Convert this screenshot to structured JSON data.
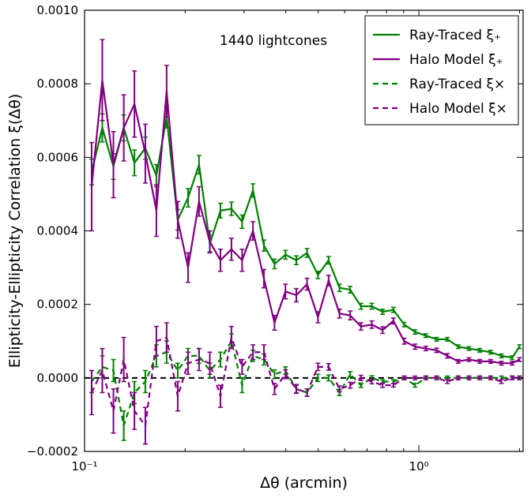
{
  "chart_data": {
    "type": "line",
    "title": "",
    "annotation": "1440 lightcones",
    "xlabel": "Δθ (arcmin)",
    "ylabel": "Ellipticity-Ellipticity Correlation ξ(Δθ)",
    "x_scale": "log",
    "xlim": [
      0.1,
      2.05
    ],
    "ylim": [
      -0.0002,
      0.001
    ],
    "x_ticks": [
      0.1,
      1
    ],
    "x_tick_labels": [
      "10⁻¹",
      "10⁰"
    ],
    "y_ticks": [
      -0.0002,
      0,
      0.0002,
      0.0004,
      0.0006,
      0.0008,
      0.001
    ],
    "y_tick_labels": [
      "−0.0002",
      "0.0000",
      "0.0002",
      "0.0004",
      "0.0006",
      "0.0008",
      "0.0010"
    ],
    "reference_line": {
      "y": 0,
      "style": "dashed",
      "color": "#000000"
    },
    "legend_position": "top-right",
    "grid": false,
    "x": [
      0.105,
      0.113,
      0.122,
      0.131,
      0.141,
      0.152,
      0.164,
      0.176,
      0.19,
      0.204,
      0.22,
      0.237,
      0.255,
      0.275,
      0.296,
      0.319,
      0.344,
      0.37,
      0.399,
      0.43,
      0.463,
      0.499,
      0.537,
      0.579,
      0.623,
      0.671,
      0.723,
      0.779,
      0.839,
      0.904,
      0.974,
      1.049,
      1.13,
      1.217,
      1.311,
      1.412,
      1.521,
      1.639,
      1.765,
      1.901,
      2.0
    ],
    "series": [
      {
        "name": "Ray-Traced ξ₊",
        "color": "#008000",
        "dash": "solid",
        "values": [
          0.00056,
          0.00068,
          0.000575,
          0.00068,
          0.000585,
          0.000625,
          0.00055,
          0.00071,
          0.00043,
          0.00049,
          0.00058,
          0.000365,
          0.000455,
          0.00046,
          0.000425,
          0.00051,
          0.00036,
          0.00031,
          0.000335,
          0.00032,
          0.00034,
          0.00028,
          0.00032,
          0.000245,
          0.00024,
          0.000195,
          0.000195,
          0.00018,
          0.000185,
          0.000145,
          0.000125,
          0.000115,
          0.000105,
          0.000105,
          8.5e-05,
          8e-05,
          7.5e-05,
          7e-05,
          6e-05,
          5.5e-05,
          8.5e-05
        ],
        "errors": [
          3.5e-05,
          3.8e-05,
          3.5e-05,
          3.5e-05,
          3.5e-05,
          3e-05,
          3e-05,
          3e-05,
          2.8e-05,
          2.5e-05,
          2.5e-05,
          2.2e-05,
          2e-05,
          1.8e-05,
          1.8e-05,
          1.8e-05,
          1.5e-05,
          1.3e-05,
          1.2e-05,
          1.2e-05,
          1.2e-05,
          1e-05,
          1e-05,
          1e-05,
          9e-06,
          8e-06,
          8e-06,
          7e-06,
          7e-06,
          6e-06,
          6e-06,
          5e-06,
          5e-06,
          5e-06,
          5e-06,
          5e-06,
          5e-06,
          5e-06,
          5e-06,
          5e-06,
          5e-06
        ]
      },
      {
        "name": "Halo Model ξ₊",
        "color": "#800080",
        "dash": "solid",
        "values": [
          0.00052,
          0.00081,
          0.00058,
          0.00068,
          0.000745,
          0.00061,
          0.000455,
          0.00078,
          0.00043,
          0.0003,
          0.00048,
          0.00037,
          0.00032,
          0.00035,
          0.00032,
          0.0004,
          0.00027,
          0.00015,
          0.000235,
          0.000225,
          0.000255,
          0.000165,
          0.000265,
          0.000175,
          0.00017,
          0.00014,
          0.000145,
          0.00013,
          0.000155,
          0.0001,
          8.5e-05,
          8e-05,
          7.5e-05,
          6e-05,
          4.5e-05,
          5e-05,
          4.5e-05,
          4.5e-05,
          4e-05,
          4e-05,
          5e-05
        ],
        "errors": [
          0.00012,
          0.00011,
          9e-05,
          9e-05,
          9e-05,
          8e-05,
          7e-05,
          7e-05,
          5e-05,
          4e-05,
          4e-05,
          3e-05,
          3e-05,
          3e-05,
          3e-05,
          2.5e-05,
          2.5e-05,
          2e-05,
          2e-05,
          1.8e-05,
          1.6e-05,
          1.5e-05,
          1.4e-05,
          1.2e-05,
          1.2e-05,
          1e-05,
          1e-05,
          9e-06,
          8e-06,
          8e-06,
          7e-06,
          6e-06,
          6e-06,
          6e-06,
          5e-06,
          5e-06,
          5e-06,
          5e-06,
          5e-06,
          5e-06,
          5e-06
        ]
      },
      {
        "name": "Ray-Traced ξ×",
        "color": "#008000",
        "dash": "dashed",
        "values": [
          -1e-05,
          3e-05,
          2e-05,
          -0.00013,
          -4e-05,
          -1e-05,
          6e-05,
          7e-05,
          2e-05,
          6e-05,
          6e-05,
          2e-05,
          5e-05,
          0.0001,
          -2e-05,
          6e-05,
          5e-05,
          1e-05,
          2e-05,
          -3e-05,
          -4e-05,
          0.0,
          0.0,
          -4e-05,
          1e-05,
          -2e-05,
          0.0,
          -1e-05,
          -1e-05,
          0.0,
          -2e-05,
          0.0,
          0.0,
          0.0,
          0.0,
          0.0,
          0.0,
          0.0,
          0.0,
          0.0,
          0.0
        ],
        "errors": [
          3e-05,
          3e-05,
          3e-05,
          4e-05,
          3e-05,
          3e-05,
          3e-05,
          3e-05,
          2e-05,
          2e-05,
          2e-05,
          2e-05,
          2e-05,
          2e-05,
          2e-05,
          1.5e-05,
          1.5e-05,
          1.2e-05,
          1e-05,
          1e-05,
          1e-05,
          1e-05,
          8e-06,
          8e-06,
          7e-06,
          6e-06,
          6e-06,
          5e-06,
          5e-06,
          5e-06,
          5e-06,
          5e-06,
          5e-06,
          5e-06,
          5e-06,
          5e-06,
          5e-06,
          5e-06,
          5e-06,
          5e-06,
          5e-06
        ]
      },
      {
        "name": "Halo Model ξ×",
        "color": "#800080",
        "dash": "dashed",
        "values": [
          -4e-05,
          2e-05,
          -9e-05,
          5e-05,
          -9e-05,
          -0.00013,
          0.0001,
          0.00011,
          -5e-05,
          4e-05,
          5e-05,
          4e-05,
          -5e-05,
          0.00011,
          3e-05,
          7e-05,
          7e-05,
          -3e-05,
          1e-05,
          -3e-05,
          -4e-05,
          3e-05,
          3e-05,
          -3e-05,
          -2e-05,
          0.0,
          -1e-05,
          -2e-05,
          -2e-05,
          0.0,
          0.0,
          0.0,
          0.0,
          -1e-05,
          0.0,
          0.0,
          0.0,
          0.0,
          -1e-05,
          0.0,
          0.0
        ],
        "errors": [
          6e-05,
          6e-05,
          6e-05,
          6e-05,
          5e-05,
          5e-05,
          4e-05,
          4e-05,
          4e-05,
          3e-05,
          3e-05,
          3e-05,
          3e-05,
          3e-05,
          2e-05,
          2e-05,
          2e-05,
          1.5e-05,
          1.2e-05,
          1.2e-05,
          1e-05,
          1e-05,
          9e-06,
          8e-06,
          8e-06,
          7e-06,
          6e-06,
          6e-06,
          5e-06,
          5e-06,
          5e-06,
          5e-06,
          5e-06,
          5e-06,
          5e-06,
          5e-06,
          5e-06,
          5e-06,
          5e-06,
          5e-06,
          5e-06
        ]
      }
    ]
  }
}
